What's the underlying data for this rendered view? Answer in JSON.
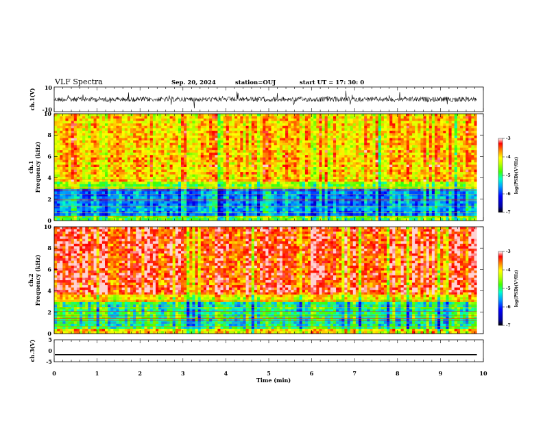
{
  "header": {
    "title": "VLF Spectra",
    "date": "Sep. 20, 2024",
    "station": "station=OUJ",
    "start": "start  UT  =   17: 30: 0"
  },
  "chart_data": [
    {
      "type": "line",
      "name": "ch1-waveform",
      "ylabel": "ch.1(V)",
      "ylim": [
        -10,
        10
      ],
      "y_tick_labels": [
        "10",
        "-10"
      ],
      "description_level_range": [
        -3,
        3
      ]
    },
    {
      "type": "heatmap",
      "name": "ch1-spectrogram",
      "ylabel": "ch.1\nFrequency (kHz)",
      "ylabel_line1": "ch.1",
      "ylabel_line2": "Frequency (kHz)",
      "ylim": [
        0,
        10
      ],
      "y_tick_labels": [
        "0",
        "2",
        "4",
        "6",
        "8",
        "10"
      ],
      "colorbar": {
        "label": "log(PSD)(V²/Hz)",
        "range": [
          -7,
          -3
        ],
        "tick_labels": [
          "-3",
          "-4",
          "-5",
          "-6",
          "-7"
        ]
      },
      "high_band_kHz": [
        3.5,
        10
      ],
      "low_band_kHz": [
        0,
        3.5
      ]
    },
    {
      "type": "heatmap",
      "name": "ch2-spectrogram",
      "ylabel_line1": "ch.2",
      "ylabel_line2": "Frequency (kHz)",
      "ylim": [
        0,
        10
      ],
      "y_tick_labels": [
        "0",
        "2",
        "4",
        "6",
        "8",
        "10"
      ],
      "colorbar": {
        "label": "log(PSD)(V²/Hz)",
        "range": [
          -7,
          -3
        ],
        "tick_labels": [
          "-3",
          "-4",
          "-5",
          "-6",
          "-7"
        ]
      },
      "high_band_kHz": [
        3.5,
        10
      ],
      "low_band_kHz": [
        0,
        3.5
      ]
    },
    {
      "type": "line",
      "name": "ch3-signal",
      "ylabel": "ch.3(V)",
      "ylim": [
        -5,
        5
      ],
      "y_tick_labels": [
        "5",
        "0",
        "-5"
      ],
      "level": -1.8
    }
  ],
  "xaxis": {
    "label": "Time (min)",
    "range": [
      0,
      10
    ],
    "data_end": 9.85,
    "tick_labels": [
      "0",
      "1",
      "2",
      "3",
      "4",
      "5",
      "6",
      "7",
      "8",
      "9",
      "10"
    ]
  },
  "colors": {
    "scale": [
      "#000080",
      "#0000ff",
      "#0080ff",
      "#00ffff",
      "#00ff80",
      "#80ff00",
      "#ffff00",
      "#ff8000",
      "#ff0000",
      "#ffffff"
    ]
  }
}
